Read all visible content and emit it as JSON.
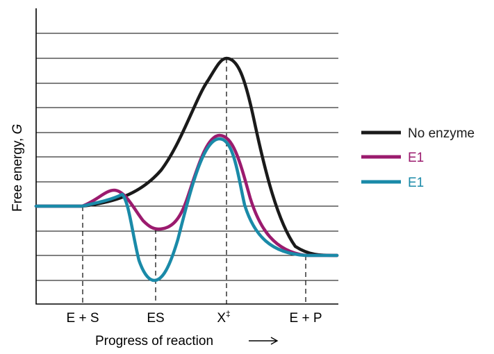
{
  "axes": {
    "y_label_main": "Free energy, ",
    "y_label_var": "G",
    "x_label": "Progress of reaction"
  },
  "states": {
    "es_free": "E + S",
    "es_complex": "ES",
    "transition_base": "X",
    "transition_sup": "‡",
    "products": "E + P"
  },
  "legend": [
    {
      "label": "No enzyme",
      "color": "#1a1a1a"
    },
    {
      "label": "E1",
      "color": "#9b1b6e"
    },
    {
      "label": "E1",
      "color": "#1a8aa8"
    }
  ]
}
